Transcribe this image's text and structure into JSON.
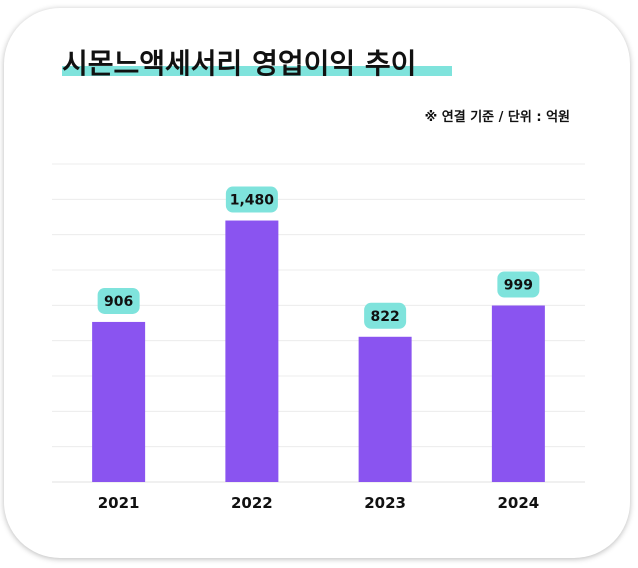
{
  "header": {
    "title": "시몬느액세서리 영업이익 추이",
    "note": "※ 연결 기준 / 단위 : 억원"
  },
  "colors": {
    "bar": "#8a54f0",
    "label_bg": "#7fe3dc",
    "title_highlight": "#7fe3dc",
    "grid": "#ececec"
  },
  "chart_data": {
    "type": "bar",
    "title": "시몬느액세서리 영업이익 추이",
    "xlabel": "",
    "ylabel": "",
    "categories": [
      "2021",
      "2022",
      "2023",
      "2024"
    ],
    "values": [
      906,
      1480,
      822,
      999
    ],
    "value_labels": [
      "906",
      "1,480",
      "822",
      "999"
    ],
    "ylim": [
      0,
      1800
    ],
    "grid": true,
    "legend": "none"
  }
}
